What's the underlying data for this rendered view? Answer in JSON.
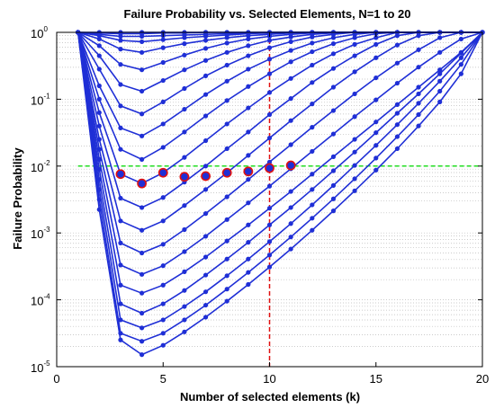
{
  "chart_data": {
    "type": "line",
    "title": "Failure Probability vs. Selected Elements, N=1 to 20",
    "xlabel": "Number of selected elements (k)",
    "ylabel": "Failure Probability",
    "xlim": [
      0,
      20
    ],
    "ylim_log10": [
      -5,
      0
    ],
    "yscale": "log",
    "grid": "y minor dotted",
    "x_ticks": [
      "0",
      "5",
      "10",
      "15",
      "20"
    ],
    "y_ticks": [
      {
        "base": "10",
        "exp": "0"
      },
      {
        "base": "10",
        "exp": "-1"
      },
      {
        "base": "10",
        "exp": "-2"
      },
      {
        "base": "10",
        "exp": "-3"
      },
      {
        "base": "10",
        "exp": "-4"
      },
      {
        "base": "10",
        "exp": "-5"
      }
    ],
    "colors": {
      "series": "#1f2fd6",
      "threshold": "#22dd22",
      "vline": "#e01010",
      "highlight_ring": "#e01010"
    },
    "threshold_y": 0.01,
    "threshold_x_range": [
      1,
      20
    ],
    "vline_x": 10,
    "series": [
      {
        "x": [
          1,
          2,
          3,
          4,
          5,
          6,
          7,
          8,
          9,
          10,
          11,
          12,
          13,
          14,
          15,
          16,
          17,
          18,
          19,
          20
        ],
        "log10y": [
          0,
          0,
          0,
          0,
          0,
          0,
          0,
          0,
          0,
          0,
          0,
          0,
          0,
          0,
          0,
          0,
          0,
          0,
          0,
          0
        ]
      },
      {
        "x": [
          1,
          2,
          3,
          4,
          5,
          6,
          7,
          8,
          9,
          10,
          11,
          12,
          13,
          14,
          15,
          16,
          17,
          18,
          19,
          20
        ],
        "log10y": [
          0,
          -0.01,
          -0.02,
          -0.02,
          -0.01,
          -0.01,
          0,
          0,
          0,
          0,
          0,
          0,
          0,
          0,
          0,
          0,
          0,
          0,
          0,
          0
        ]
      },
      {
        "x": [
          1,
          2,
          3,
          4,
          5,
          6,
          7,
          8,
          9,
          10,
          11,
          12,
          13,
          14,
          15,
          16,
          17,
          18,
          19,
          20
        ],
        "log10y": [
          0,
          -0.03,
          -0.06,
          -0.06,
          -0.05,
          -0.04,
          -0.03,
          -0.02,
          -0.01,
          0,
          0,
          0,
          0,
          0,
          0,
          0,
          0,
          0,
          0,
          0
        ]
      },
      {
        "x": [
          1,
          2,
          3,
          4,
          5,
          6,
          7,
          8,
          9,
          10,
          11,
          12,
          13,
          14,
          15,
          16,
          17,
          18,
          19,
          20
        ],
        "log10y": [
          0,
          -0.05,
          -0.12,
          -0.14,
          -0.11,
          -0.08,
          -0.06,
          -0.04,
          -0.02,
          -0.01,
          0,
          0,
          0,
          0,
          0,
          0,
          0,
          0,
          0,
          0
        ]
      },
      {
        "x": [
          1,
          2,
          3,
          4,
          5,
          6,
          7,
          8,
          9,
          10,
          11,
          12,
          13,
          14,
          15,
          16,
          17,
          18,
          19,
          20
        ],
        "log10y": [
          0,
          -0.1,
          -0.25,
          -0.3,
          -0.23,
          -0.17,
          -0.12,
          -0.08,
          -0.05,
          -0.03,
          -0.01,
          0,
          0,
          0,
          0,
          0,
          0,
          0,
          0,
          0
        ]
      },
      {
        "x": [
          1,
          2,
          3,
          4,
          5,
          6,
          7,
          8,
          9,
          10,
          11,
          12,
          13,
          14,
          15,
          16,
          17,
          18,
          19,
          20
        ],
        "log10y": [
          0,
          -0.2,
          -0.48,
          -0.56,
          -0.45,
          -0.34,
          -0.24,
          -0.16,
          -0.1,
          -0.06,
          -0.03,
          -0.01,
          0,
          0,
          0,
          0,
          0,
          0,
          0,
          0
        ]
      },
      {
        "x": [
          1,
          2,
          3,
          4,
          5,
          6,
          7,
          8,
          9,
          10,
          11,
          12,
          13,
          14,
          15,
          16,
          17,
          18,
          19,
          20
        ],
        "log10y": [
          0,
          -0.35,
          -0.78,
          -0.88,
          -0.72,
          -0.56,
          -0.42,
          -0.3,
          -0.2,
          -0.12,
          -0.07,
          -0.03,
          -0.01,
          0,
          0,
          0,
          0,
          0,
          0,
          0
        ]
      },
      {
        "x": [
          1,
          2,
          3,
          4,
          5,
          6,
          7,
          8,
          9,
          10,
          11,
          12,
          13,
          14,
          15,
          16,
          17,
          18,
          19,
          20
        ],
        "log10y": [
          0,
          -0.55,
          -1.1,
          -1.22,
          -1.04,
          -0.84,
          -0.65,
          -0.49,
          -0.35,
          -0.23,
          -0.14,
          -0.07,
          -0.03,
          0,
          0,
          0,
          0,
          0,
          0,
          0
        ]
      },
      {
        "x": [
          1,
          2,
          3,
          4,
          5,
          6,
          7,
          8,
          9,
          10,
          11,
          12,
          13,
          14,
          15,
          16,
          17,
          18,
          19,
          20
        ],
        "log10y": [
          0,
          -0.8,
          -1.43,
          -1.55,
          -1.37,
          -1.15,
          -0.93,
          -0.73,
          -0.55,
          -0.4,
          -0.27,
          -0.16,
          -0.08,
          -0.03,
          0,
          0,
          0,
          0,
          0,
          0
        ]
      },
      {
        "x": [
          1,
          2,
          3,
          4,
          5,
          6,
          7,
          8,
          9,
          10,
          11,
          12,
          13,
          14,
          15,
          16,
          17,
          18,
          19,
          20
        ],
        "log10y": [
          0,
          -1.0,
          -1.75,
          -1.9,
          -1.72,
          -1.49,
          -1.25,
          -1.02,
          -0.81,
          -0.62,
          -0.44,
          -0.29,
          -0.17,
          -0.08,
          -0.02,
          0,
          0,
          0,
          0,
          0
        ]
      },
      {
        "x": [
          1,
          2,
          3,
          4,
          5,
          6,
          7,
          8,
          9,
          10,
          11,
          12,
          13,
          14,
          15,
          16,
          17,
          18,
          19,
          20
        ],
        "log10y": [
          0,
          -1.2,
          -2.12,
          -2.26,
          -2.1,
          -1.87,
          -1.62,
          -1.37,
          -1.13,
          -0.9,
          -0.69,
          -0.49,
          -0.32,
          -0.18,
          -0.08,
          0,
          0,
          0,
          0,
          0
        ]
      },
      {
        "x": [
          1,
          2,
          3,
          4,
          5,
          6,
          7,
          8,
          9,
          10,
          11,
          12,
          13,
          14,
          15,
          16,
          17,
          18,
          19,
          20
        ],
        "log10y": [
          0,
          -1.4,
          -2.48,
          -2.62,
          -2.47,
          -2.24,
          -2.0,
          -1.74,
          -1.49,
          -1.23,
          -0.99,
          -0.75,
          -0.54,
          -0.35,
          -0.18,
          -0.05,
          0,
          0,
          0,
          0
        ]
      },
      {
        "x": [
          1,
          2,
          3,
          4,
          5,
          6,
          7,
          8,
          9,
          10,
          11,
          12,
          13,
          14,
          15,
          16,
          17,
          18,
          19,
          20
        ],
        "log10y": [
          0,
          -1.6,
          -2.82,
          -2.96,
          -2.82,
          -2.59,
          -2.35,
          -2.1,
          -1.84,
          -1.58,
          -1.32,
          -1.07,
          -0.82,
          -0.59,
          -0.38,
          -0.19,
          -0.05,
          0,
          0,
          0
        ]
      },
      {
        "x": [
          1,
          2,
          3,
          4,
          5,
          6,
          7,
          8,
          9,
          10,
          11,
          12,
          13,
          14,
          15,
          16,
          17,
          18,
          19,
          20
        ],
        "log10y": [
          0,
          -1.75,
          -3.15,
          -3.3,
          -3.17,
          -2.95,
          -2.71,
          -2.46,
          -2.2,
          -1.94,
          -1.68,
          -1.42,
          -1.17,
          -0.92,
          -0.68,
          -0.46,
          -0.26,
          -0.08,
          0,
          0
        ]
      },
      {
        "x": [
          1,
          2,
          3,
          4,
          5,
          6,
          7,
          8,
          9,
          10,
          11,
          12,
          13,
          14,
          15,
          16,
          17,
          18,
          19,
          20
        ],
        "log10y": [
          0,
          -1.9,
          -3.48,
          -3.62,
          -3.49,
          -3.28,
          -3.05,
          -2.8,
          -2.55,
          -2.3,
          -2.04,
          -1.78,
          -1.52,
          -1.26,
          -1.01,
          -0.76,
          -0.52,
          -0.3,
          -0.1,
          0
        ]
      },
      {
        "x": [
          1,
          2,
          3,
          4,
          5,
          6,
          7,
          8,
          9,
          10,
          11,
          12,
          13,
          14,
          15,
          16,
          17,
          18,
          19,
          20
        ],
        "log10y": [
          0,
          -2.05,
          -3.78,
          -3.9,
          -3.78,
          -3.58,
          -3.36,
          -3.12,
          -2.88,
          -2.63,
          -2.38,
          -2.12,
          -1.86,
          -1.6,
          -1.34,
          -1.08,
          -0.82,
          -0.56,
          -0.3,
          0
        ]
      },
      {
        "x": [
          1,
          2,
          3,
          4,
          5,
          6,
          7,
          8,
          9,
          10,
          11,
          12,
          13,
          14,
          15,
          16,
          17,
          18,
          19,
          20
        ],
        "log10y": [
          0,
          -2.2,
          -4.06,
          -4.2,
          -4.06,
          -3.86,
          -3.63,
          -3.39,
          -3.14,
          -2.88,
          -2.62,
          -2.35,
          -2.07,
          -1.79,
          -1.5,
          -1.21,
          -0.92,
          -0.62,
          -0.31,
          0
        ]
      },
      {
        "x": [
          1,
          2,
          3,
          4,
          5,
          6,
          7,
          8,
          9,
          10,
          11,
          12,
          13,
          14,
          15,
          16,
          17,
          18,
          19,
          20
        ],
        "log10y": [
          0,
          -2.35,
          -4.3,
          -4.42,
          -4.3,
          -4.1,
          -3.88,
          -3.64,
          -3.39,
          -3.13,
          -2.86,
          -2.58,
          -2.29,
          -1.99,
          -1.69,
          -1.38,
          -1.06,
          -0.73,
          -0.38,
          0
        ]
      },
      {
        "x": [
          1,
          2,
          3,
          4,
          5,
          6,
          7,
          8,
          9,
          10,
          11,
          12,
          13,
          14,
          15,
          16,
          17,
          18,
          19,
          20
        ],
        "log10y": [
          0,
          -2.5,
          -4.5,
          -4.62,
          -4.5,
          -4.3,
          -4.08,
          -3.84,
          -3.59,
          -3.33,
          -3.06,
          -2.78,
          -2.49,
          -2.19,
          -1.88,
          -1.56,
          -1.23,
          -0.88,
          -0.48,
          0
        ]
      },
      {
        "x": [
          1,
          2,
          3,
          4,
          5,
          6,
          7,
          8,
          9,
          10,
          11,
          12,
          13,
          14,
          15,
          16,
          17,
          18,
          19,
          20
        ],
        "log10y": [
          0,
          -2.65,
          -4.6,
          -4.82,
          -4.68,
          -4.48,
          -4.26,
          -4.02,
          -3.77,
          -3.51,
          -3.24,
          -2.96,
          -2.67,
          -2.37,
          -2.06,
          -1.74,
          -1.4,
          -1.04,
          -0.62,
          0
        ]
      }
    ],
    "highlighted_points": [
      {
        "x": 3,
        "log10y": -2.12
      },
      {
        "x": 4,
        "log10y": -2.26
      },
      {
        "x": 5,
        "log10y": -2.1
      },
      {
        "x": 6,
        "log10y": -2.16
      },
      {
        "x": 7,
        "log10y": -2.15
      },
      {
        "x": 8,
        "log10y": -2.1
      },
      {
        "x": 9,
        "log10y": -2.08
      },
      {
        "x": 10,
        "log10y": -2.03
      },
      {
        "x": 11,
        "log10y": -1.99
      }
    ]
  }
}
